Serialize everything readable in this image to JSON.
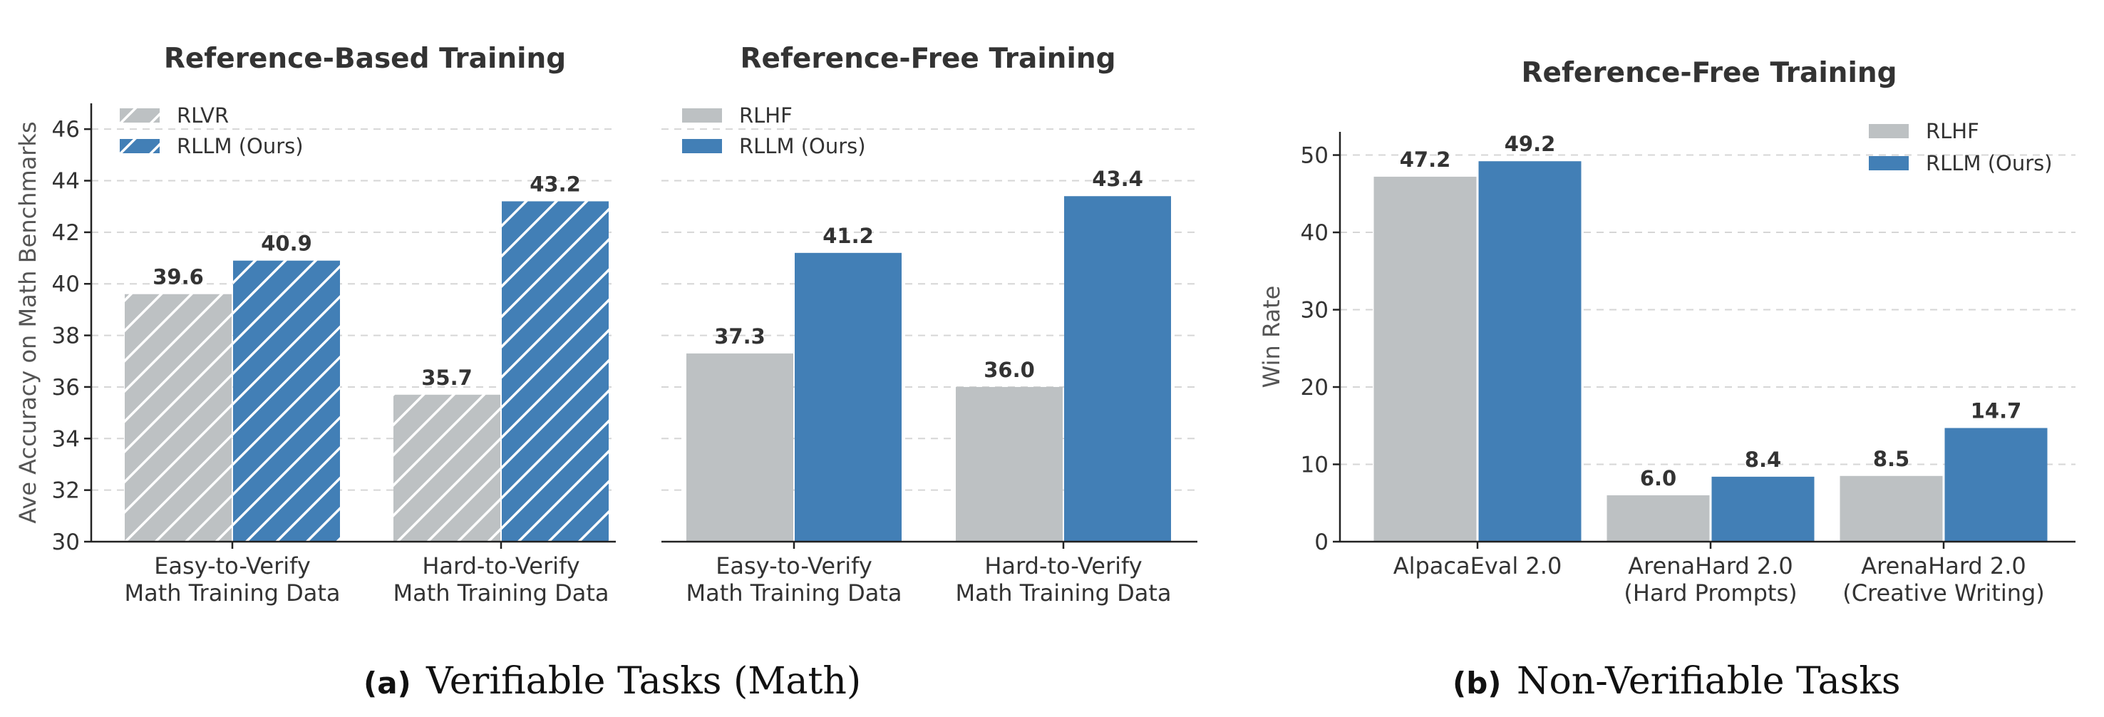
{
  "colors": {
    "gray": "#BDC1C3",
    "blue": "#427FB6",
    "hatch": "#ffffff"
  },
  "captions": [
    {
      "tag": "(a)",
      "text": "Verifiable Tasks (Math)"
    },
    {
      "tag": "(b)",
      "text": "Non-Verifiable Tasks"
    }
  ],
  "chart_data": [
    {
      "type": "bar",
      "title": "Reference-Based Training",
      "ylabel": "Ave Accuracy on Math Benchmarks",
      "xlabel": "",
      "ylim": [
        30,
        47
      ],
      "yticks": [
        30,
        32,
        34,
        36,
        38,
        40,
        42,
        44,
        46
      ],
      "grid": true,
      "hatched": true,
      "legend_position": "top-left",
      "categories": [
        "Easy-to-Verify\nMath Training Data",
        "Hard-to-Verify\nMath Training Data"
      ],
      "series": [
        {
          "name": "RLVR",
          "color": "gray",
          "values": [
            39.6,
            35.7
          ],
          "labels": [
            "39.6",
            "35.7"
          ]
        },
        {
          "name": "RLLM (Ours)",
          "color": "blue",
          "values": [
            40.9,
            43.2
          ],
          "labels": [
            "40.9",
            "43.2"
          ]
        }
      ]
    },
    {
      "type": "bar",
      "title": "Reference-Free Training",
      "ylabel": "",
      "xlabel": "",
      "ylim": [
        30,
        47
      ],
      "yticks": [],
      "grid": true,
      "hatched": false,
      "legend_position": "top-left",
      "categories": [
        "Easy-to-Verify\nMath Training Data",
        "Hard-to-Verify\nMath Training Data"
      ],
      "series": [
        {
          "name": "RLHF",
          "color": "gray",
          "values": [
            37.3,
            36.0
          ],
          "labels": [
            "37.3",
            "36.0"
          ]
        },
        {
          "name": "RLLM (Ours)",
          "color": "blue",
          "values": [
            41.2,
            43.4
          ],
          "labels": [
            "41.2",
            "43.4"
          ]
        }
      ]
    },
    {
      "type": "bar",
      "title": "Reference-Free Training",
      "ylabel": "Win Rate",
      "xlabel": "",
      "ylim": [
        0,
        53
      ],
      "yticks": [
        0,
        10,
        20,
        30,
        40,
        50
      ],
      "grid": true,
      "hatched": false,
      "legend_position": "top-right",
      "categories": [
        "AlpacaEval 2.0",
        "ArenaHard 2.0\n(Hard Prompts)",
        "ArenaHard 2.0\n(Creative Writing)"
      ],
      "series": [
        {
          "name": "RLHF",
          "color": "gray",
          "values": [
            47.2,
            6.0,
            8.5
          ],
          "labels": [
            "47.2",
            "6.0",
            "8.5"
          ]
        },
        {
          "name": "RLLM (Ours)",
          "color": "blue",
          "values": [
            49.2,
            8.4,
            14.7
          ],
          "labels": [
            "49.2",
            "8.4",
            "14.7"
          ]
        }
      ]
    }
  ]
}
